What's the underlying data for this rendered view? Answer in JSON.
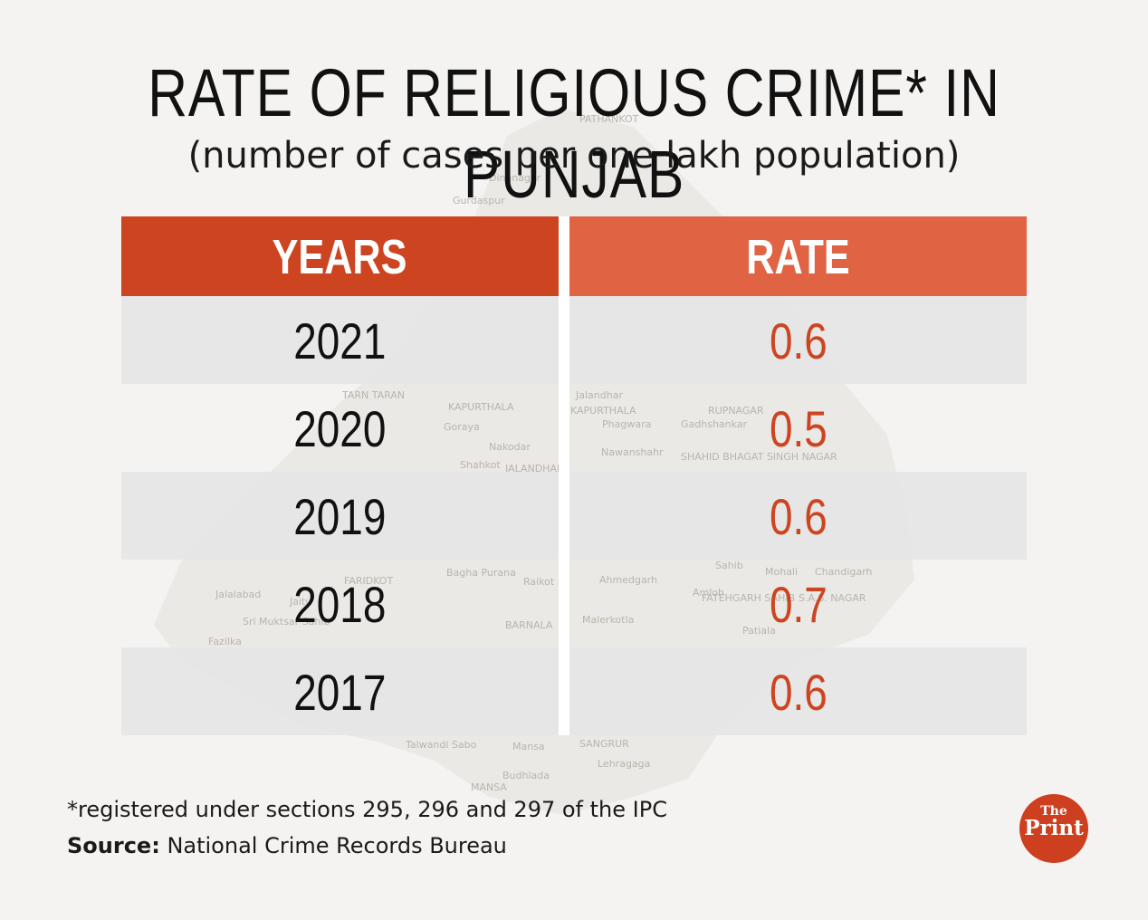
{
  "chart_data": {
    "type": "table",
    "title": "RATE OF RELIGIOUS CRIME* IN PUNJAB",
    "subtitle": "(number of cases per one lakh population)",
    "columns": [
      "YEARS",
      "RATE"
    ],
    "rows": [
      {
        "year": "2021",
        "rate": "0.6"
      },
      {
        "year": "2020",
        "rate": "0.5"
      },
      {
        "year": "2019",
        "rate": "0.6"
      },
      {
        "year": "2018",
        "rate": "0.7"
      },
      {
        "year": "2017",
        "rate": "0.6"
      }
    ],
    "footnote": "*registered under sections 295, 296 and 297 of the IPC",
    "source_label": "Source:",
    "source": "National Crime Records Bureau"
  },
  "colors": {
    "header_years": "#cd4520",
    "header_rate": "#e06443",
    "rate_text": "#cd4520",
    "row_shade": "#e6e6e6",
    "logo": "#cd3f1e"
  },
  "logo": {
    "line1": "The",
    "line2": "Print"
  },
  "background_map_labels": [
    "PATHANKOT",
    "Dinanagar",
    "Gurdaspur",
    "TARN TARAN",
    "KAPURTHALA",
    "Jalandhar",
    "KAPURTHALA",
    "Phagwara",
    "Goraya",
    "Gadhshankar",
    "RUPNAGAR",
    "Nakodar",
    "Shahkot",
    "JALANDHAR",
    "Nawanshahr",
    "SHAHID BHAGAT SINGH NAGAR",
    "FARIDKOT",
    "Jaitu",
    "Bagha Purana",
    "Raikot",
    "Ahmedgarh",
    "Amloh",
    "Sahib",
    "Mohali",
    "Chandigarh",
    "FATEHGARH SAHIB",
    "S.A.S. NAGAR",
    "Jalalabad",
    "Sri Muktsar Sahib",
    "Fazilka",
    "BARNALA",
    "Malerkotla",
    "Patiala",
    "Talwandi Sabo",
    "Mansa",
    "SANGRUR",
    "Lehragaga",
    "Budhlada",
    "MANSA"
  ]
}
